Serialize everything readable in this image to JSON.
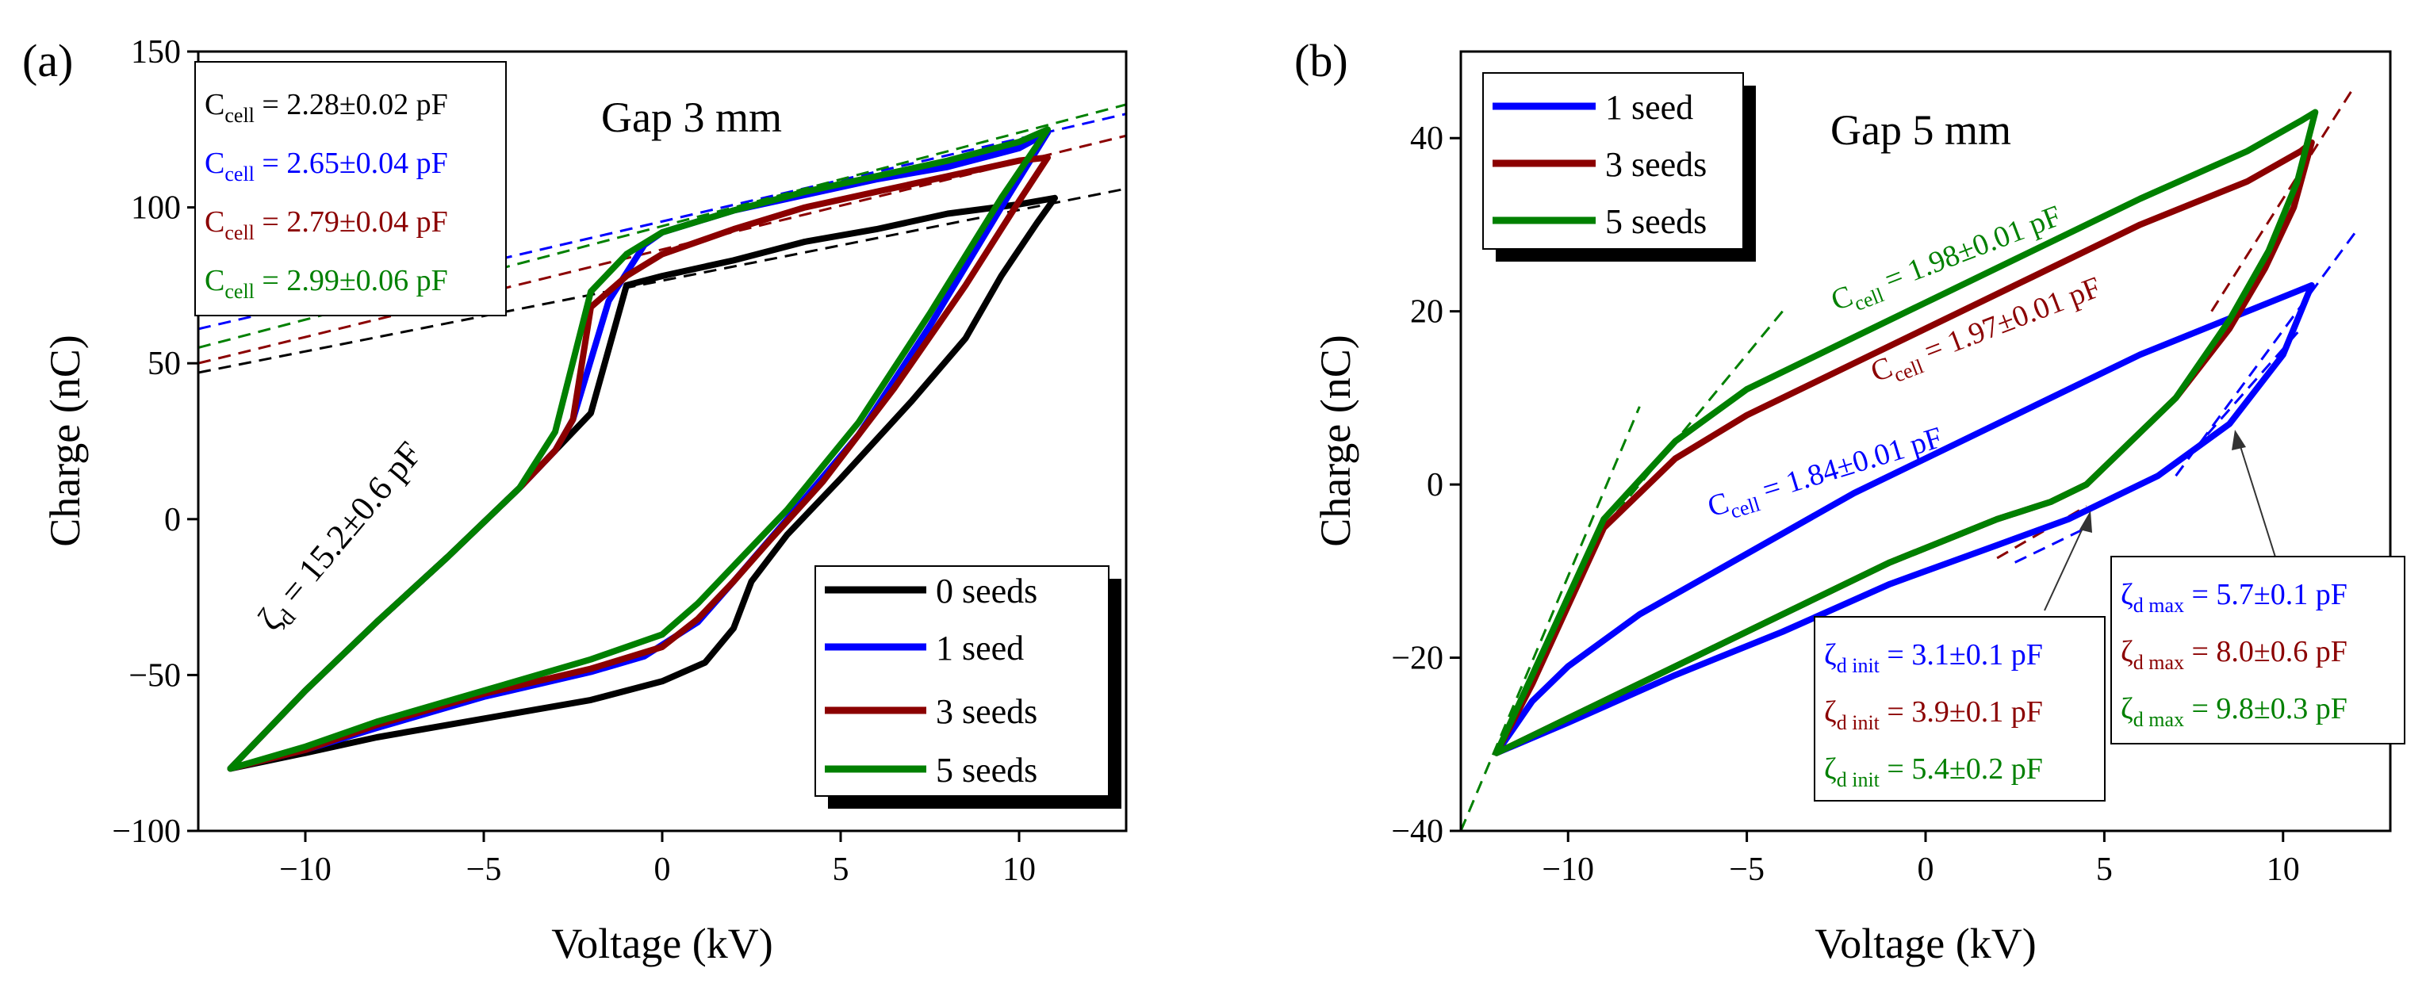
{
  "chart_data": [
    {
      "type": "line",
      "panel_label": "(a)",
      "annotation": "Gap 3 mm",
      "xlabel": "Voltage (kV)",
      "ylabel": "Charge (nC)",
      "xlim": [
        -13,
        13
      ],
      "ylim": [
        -100,
        150
      ],
      "xticks": [
        -10,
        -5,
        0,
        5,
        10
      ],
      "yticks": [
        -100,
        -50,
        0,
        50,
        100,
        150
      ],
      "xtick_labels": [
        "−10",
        "−5",
        "0",
        "5",
        "10"
      ],
      "ytick_labels": [
        "−100",
        "−50",
        "0",
        "50",
        "100",
        "150"
      ],
      "legend_position": "bottom-right",
      "series": [
        {
          "name": "0 seeds",
          "color": "#000000",
          "x": [
            -12.1,
            -10,
            -8,
            -6,
            -4,
            -2.5,
            -2,
            -1,
            0,
            2,
            4,
            6,
            8,
            10,
            11,
            10.5,
            9.5,
            8.5,
            7,
            5,
            3.5,
            2.5,
            2,
            1.2,
            0,
            -2,
            -5,
            -8,
            -10,
            -12.1
          ],
          "y": [
            -80,
            -55,
            -33,
            -12,
            10,
            28,
            34,
            75,
            78,
            83,
            89,
            93,
            98,
            101,
            103,
            95,
            78,
            58,
            38,
            13,
            -5,
            -20,
            -35,
            -46,
            -52,
            -58,
            -64,
            -70,
            -75,
            -80
          ]
        },
        {
          "name": "1 seed",
          "color": "#0000ff",
          "x": [
            -12.1,
            -10,
            -8,
            -6,
            -4,
            -3,
            -2.5,
            -1.5,
            -0.5,
            0,
            2,
            4,
            6,
            8,
            10,
            10.8,
            9.5,
            7.5,
            5.5,
            3.5,
            2,
            1,
            -0.5,
            -2,
            -5,
            -8,
            -10,
            -12.1
          ],
          "y": [
            -80,
            -55,
            -33,
            -12,
            10,
            22,
            32,
            70,
            88,
            92,
            99,
            104,
            109,
            113,
            119,
            124,
            100,
            62,
            27,
            0,
            -20,
            -33,
            -44,
            -49,
            -57,
            -67,
            -74,
            -80
          ]
        },
        {
          "name": "3 seeds",
          "color": "#8b0000",
          "x": [
            -12.1,
            -10,
            -8,
            -6,
            -4,
            -3,
            -2.5,
            -2,
            -1,
            0,
            2,
            4,
            6,
            8,
            10,
            10.8,
            10,
            8.5,
            6.5,
            4.5,
            3,
            2,
            1,
            0,
            -2,
            -5,
            -8,
            -10,
            -12.1
          ],
          "y": [
            -80,
            -55,
            -33,
            -12,
            10,
            22,
            32,
            68,
            78,
            85,
            93,
            100,
            105,
            110,
            115,
            116,
            102,
            75,
            42,
            12,
            -7,
            -20,
            -32,
            -41,
            -48,
            -56,
            -66,
            -74,
            -80
          ]
        },
        {
          "name": "5 seeds",
          "color": "#008000",
          "x": [
            -12.1,
            -10,
            -8,
            -6,
            -4,
            -3,
            -2,
            -1,
            0,
            2,
            4,
            6,
            8,
            10,
            10.8,
            9.5,
            7.5,
            5.5,
            3.5,
            2,
            1,
            0,
            -2,
            -5,
            -8,
            -10,
            -12.1
          ],
          "y": [
            -80,
            -55,
            -33,
            -12,
            10,
            28,
            73,
            85,
            92,
            99,
            105,
            110,
            115,
            121,
            125,
            103,
            66,
            31,
            3,
            -15,
            -27,
            -37,
            -45,
            -55,
            -65,
            -73,
            -80
          ]
        }
      ],
      "fit_lines": [
        {
          "color": "#000000",
          "label_main": "C",
          "label_sub": "cell",
          "label_value": " = 2.28±0.02 pF",
          "x": [
            -13,
            13
          ],
          "y": [
            47,
            106
          ]
        },
        {
          "color": "#0000ff",
          "label_main": "C",
          "label_sub": "cell",
          "label_value": " = 2.65±0.04 pF",
          "x": [
            -13,
            13
          ],
          "y": [
            61,
            130
          ]
        },
        {
          "color": "#8b0000",
          "label_main": "C",
          "label_sub": "cell",
          "label_value": " = 2.79±0.04 pF",
          "x": [
            -13,
            13
          ],
          "y": [
            50,
            123
          ]
        },
        {
          "color": "#008000",
          "label_main": "C",
          "label_sub": "cell",
          "label_value": " = 2.99±0.06 pF",
          "x": [
            -13,
            13
          ],
          "y": [
            55,
            133
          ]
        }
      ],
      "rotated_label": {
        "main": "ζ",
        "sub": "d",
        "value": " = 15.2±0.6 pF"
      }
    },
    {
      "type": "line",
      "panel_label": "(b)",
      "annotation": "Gap 5 mm",
      "xlabel": "Voltage (kV)",
      "ylabel": "Charge (nC)",
      "xlim": [
        -13,
        13
      ],
      "ylim": [
        -40,
        50
      ],
      "xticks": [
        -10,
        -5,
        0,
        5,
        10
      ],
      "yticks": [
        -40,
        -20,
        0,
        20,
        40
      ],
      "xtick_labels": [
        "−10",
        "−5",
        "0",
        "5",
        "10"
      ],
      "ytick_labels": [
        "−40",
        "−20",
        "0",
        "20",
        "40"
      ],
      "legend_position": "top-left",
      "series": [
        {
          "name": "1 seed",
          "color": "#0000ff",
          "x": [
            -12,
            -11,
            -10,
            -8,
            -5,
            -2,
            0,
            3,
            6,
            9,
            10.5,
            10.8,
            10,
            8.5,
            6.5,
            4,
            2,
            -1,
            -4,
            -7,
            -10,
            -12
          ],
          "y": [
            -31,
            -25,
            -21,
            -15,
            -8,
            -1,
            3,
            9,
            15,
            20,
            22.5,
            23,
            15,
            7,
            1,
            -4,
            -7,
            -11.5,
            -17,
            -22,
            -27.5,
            -31
          ]
        },
        {
          "name": "3 seeds",
          "color": "#8b0000",
          "x": [
            -12,
            -11,
            -10,
            -9,
            -7,
            -5,
            -2,
            0,
            3,
            6,
            9,
            10.5,
            10.8,
            10.3,
            9.5,
            8.5,
            7,
            5.5,
            4.5,
            3.5,
            2,
            -1,
            -4,
            -7,
            -10,
            -12
          ],
          "y": [
            -31,
            -23,
            -14,
            -5,
            3,
            8,
            14,
            18,
            24,
            30,
            35,
            38.5,
            39.5,
            32,
            25,
            18,
            10,
            4,
            0,
            -2,
            -4,
            -9,
            -15,
            -21,
            -27,
            -31
          ]
        },
        {
          "name": "5 seeds",
          "color": "#008000",
          "x": [
            -12,
            -11,
            -10,
            -9,
            -7,
            -5,
            -2,
            0,
            3,
            6,
            9,
            10.5,
            10.9,
            10.4,
            9.6,
            8.5,
            7,
            5.5,
            4.5,
            3.5,
            2,
            -1,
            -4,
            -7,
            -10,
            -12
          ],
          "y": [
            -31,
            -22,
            -13,
            -4,
            5,
            11,
            17,
            21,
            27,
            33,
            38.5,
            42,
            43,
            35,
            27,
            19,
            10,
            4,
            0,
            -2,
            -4,
            -9,
            -15,
            -21,
            -27,
            -31
          ]
        }
      ],
      "fit_lines": [
        {
          "color": "#008000",
          "x": [
            -13,
            -8
          ],
          "y": [
            -40,
            9
          ]
        },
        {
          "color": "#008000",
          "x": [
            -9,
            -4
          ],
          "y": [
            -5,
            20
          ]
        },
        {
          "color": "#0000ff",
          "x": [
            2.5,
            4.5
          ],
          "y": [
            -9,
            -5
          ]
        },
        {
          "color": "#8b0000",
          "x": [
            2,
            4.5
          ],
          "y": [
            -8.5,
            -2.5
          ]
        },
        {
          "color": "#8b0000",
          "x": [
            8,
            12
          ],
          "y": [
            20,
            46
          ]
        },
        {
          "color": "#0000ff",
          "x": [
            7,
            12
          ],
          "y": [
            1,
            29
          ]
        },
        {
          "color": "#0000ff",
          "x": [
            7.5,
            10.5
          ],
          "y": [
            4,
            18
          ]
        }
      ],
      "slope_labels": [
        {
          "color": "#008000",
          "main": "C",
          "sub": "cell",
          "value": " = 1.98±0.01 pF"
        },
        {
          "color": "#8b0000",
          "main": "C",
          "sub": "cell",
          "value": " = 1.97±0.01 pF"
        },
        {
          "color": "#0000ff",
          "main": "C",
          "sub": "cell",
          "value": " = 1.84±0.01 pF"
        }
      ],
      "box_init": [
        {
          "color": "#0000ff",
          "main": "ζ",
          "sub": "d init",
          "value": " = 3.1±0.1 pF"
        },
        {
          "color": "#8b0000",
          "main": "ζ",
          "sub": "d init",
          "value": " = 3.9±0.1 pF"
        },
        {
          "color": "#008000",
          "main": "ζ",
          "sub": "d init",
          "value": " = 5.4±0.2 pF"
        }
      ],
      "box_max": [
        {
          "color": "#0000ff",
          "main": "ζ",
          "sub": "d max",
          "value": " = 5.7±0.1 pF"
        },
        {
          "color": "#8b0000",
          "main": "ζ",
          "sub": "d max",
          "value": " = 8.0±0.6 pF"
        },
        {
          "color": "#008000",
          "main": "ζ",
          "sub": "d max",
          "value": " = 9.8±0.3 pF"
        }
      ]
    }
  ]
}
